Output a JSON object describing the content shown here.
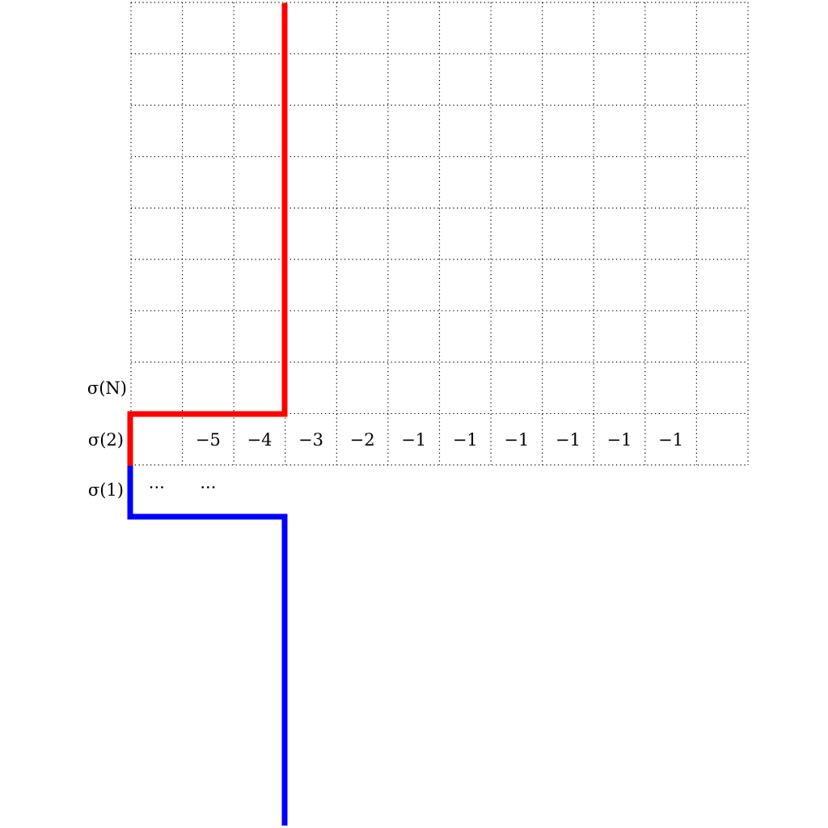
{
  "diagram": {
    "row_labels": {
      "sigma_N": "σ(N)",
      "sigma_2": "σ(2)",
      "sigma_1": "σ(1)"
    },
    "sigma2_row_values": [
      "−5",
      "−4",
      "−3",
      "−2",
      "−1",
      "−1",
      "−1",
      "−1",
      "−1",
      "−1"
    ],
    "sigma1_row_values": [
      "···",
      "···"
    ],
    "colors": {
      "upper_path": "#ff0000",
      "lower_path": "#0000ff",
      "grid": "#000000"
    }
  }
}
